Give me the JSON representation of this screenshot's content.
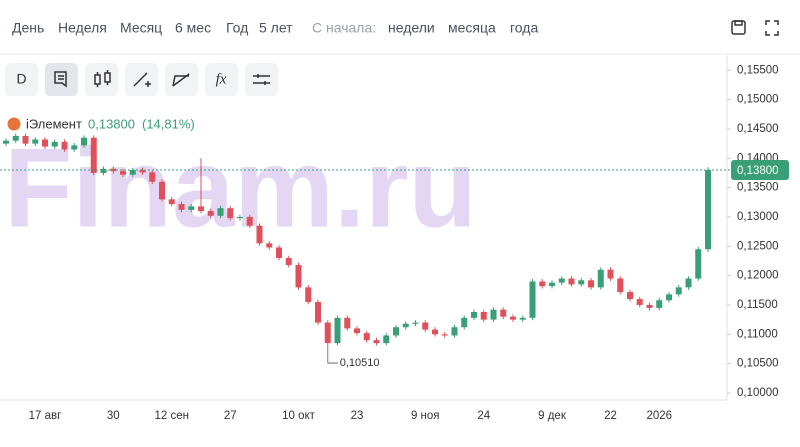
{
  "toolbar": {
    "periods": [
      "День",
      "Неделя",
      "Месяц",
      "6 мес",
      "Год",
      "5 лет"
    ],
    "since_label": "С начала:",
    "since": [
      "недели",
      "месяца",
      "года"
    ],
    "mode": "D"
  },
  "chart_data": {
    "type": "candlestick",
    "watermark": "Finam.ru",
    "legend": {
      "name": "iЭлемент",
      "price": "0,13800",
      "change": "(14,81%)"
    },
    "up_color": "#3a9f77",
    "down_color": "#e0505a",
    "grid": false,
    "categories": [
      null,
      null,
      null,
      null,
      "17 авг",
      null,
      null,
      null,
      null,
      null,
      null,
      "30",
      null,
      null,
      null,
      null,
      null,
      "12 сен",
      null,
      null,
      null,
      null,
      null,
      "27",
      null,
      null,
      null,
      null,
      null,
      null,
      "10 окт",
      null,
      null,
      null,
      null,
      null,
      "23",
      null,
      null,
      null,
      null,
      null,
      null,
      "9 ноя",
      null,
      null,
      null,
      null,
      null,
      "24",
      null,
      null,
      null,
      null,
      null,
      null,
      "9 дек",
      null,
      null,
      null,
      null,
      null,
      "22",
      null,
      null,
      null,
      null,
      "2026",
      null,
      null,
      null,
      null,
      null
    ],
    "opens": [
      0.1425,
      0.143,
      0.1438,
      0.1425,
      0.1432,
      0.142,
      0.1428,
      0.1415,
      0.1422,
      0.1435,
      0.1375,
      0.1382,
      0.1378,
      0.1372,
      0.138,
      0.1376,
      0.136,
      0.133,
      0.1322,
      0.1312,
      0.1318,
      0.131,
      0.1302,
      0.1315,
      0.1298,
      0.13,
      0.1285,
      0.1255,
      0.1248,
      0.123,
      0.1218,
      0.118,
      0.1155,
      0.112,
      0.1085,
      0.1128,
      0.111,
      0.1102,
      0.109,
      0.1085,
      0.1098,
      0.1112,
      0.1118,
      0.112,
      0.1108,
      0.11,
      0.1098,
      0.1112,
      0.1128,
      0.1138,
      0.1125,
      0.1142,
      0.113,
      0.1125,
      0.1128,
      0.119,
      0.1182,
      0.1188,
      0.1195,
      0.1185,
      0.1192,
      0.118,
      0.121,
      0.1195,
      0.1172,
      0.116,
      0.115,
      0.1145,
      0.1158,
      0.1168,
      0.118,
      0.1195,
      0.1245
    ],
    "highs": [
      0.1434,
      0.1442,
      0.1442,
      0.1436,
      0.1436,
      0.1432,
      0.1432,
      0.1426,
      0.1439,
      0.1439,
      0.1386,
      0.1386,
      0.1382,
      0.1384,
      0.1384,
      0.138,
      0.1364,
      0.1334,
      0.1326,
      0.1322,
      0.14,
      0.1314,
      0.1319,
      0.1319,
      0.1304,
      0.1304,
      0.1289,
      0.1259,
      0.1252,
      0.1234,
      0.1222,
      0.1184,
      0.1159,
      0.1124,
      0.1132,
      0.1132,
      0.1114,
      0.1106,
      0.1094,
      0.1102,
      0.1116,
      0.1122,
      0.1124,
      0.1124,
      0.1112,
      0.1104,
      0.1116,
      0.1132,
      0.1142,
      0.1142,
      0.1146,
      0.1146,
      0.1134,
      0.1132,
      0.1194,
      0.1194,
      0.1192,
      0.1199,
      0.1199,
      0.1196,
      0.1196,
      0.1214,
      0.1214,
      0.1199,
      0.1176,
      0.1164,
      0.1154,
      0.1162,
      0.1172,
      0.1184,
      0.1199,
      0.1249,
      0.1385
    ],
    "lows": [
      0.1421,
      0.1426,
      0.1421,
      0.1421,
      0.1416,
      0.1416,
      0.1411,
      0.1411,
      0.1418,
      0.1371,
      0.1371,
      0.1374,
      0.1368,
      0.1368,
      0.1372,
      0.1356,
      0.1326,
      0.1318,
      0.1308,
      0.1308,
      0.1306,
      0.1298,
      0.1298,
      0.1294,
      0.1294,
      0.1281,
      0.1251,
      0.1244,
      0.1226,
      0.1214,
      0.1176,
      0.1151,
      0.1116,
      0.1051,
      0.1081,
      0.1106,
      0.1098,
      0.1086,
      0.1081,
      0.1081,
      0.1094,
      0.1108,
      0.1114,
      0.1104,
      0.1096,
      0.1094,
      0.1094,
      0.1108,
      0.1124,
      0.1121,
      0.1121,
      0.1126,
      0.1121,
      0.1121,
      0.1124,
      0.1178,
      0.1178,
      0.1184,
      0.1181,
      0.1181,
      0.1176,
      0.1176,
      0.1191,
      0.1168,
      0.1156,
      0.1146,
      0.1141,
      0.1141,
      0.1154,
      0.1164,
      0.1176,
      0.1191,
      0.124
    ],
    "closes": [
      0.143,
      0.1438,
      0.1425,
      0.1432,
      0.142,
      0.1428,
      0.1415,
      0.1422,
      0.1435,
      0.1375,
      0.1382,
      0.1378,
      0.1372,
      0.138,
      0.1376,
      0.136,
      0.133,
      0.1322,
      0.1312,
      0.1318,
      0.131,
      0.1302,
      0.1315,
      0.1298,
      0.13,
      0.1285,
      0.1255,
      0.1248,
      0.123,
      0.1218,
      0.118,
      0.1155,
      0.112,
      0.1085,
      0.1128,
      0.111,
      0.1102,
      0.109,
      0.1085,
      0.1098,
      0.1112,
      0.1118,
      0.112,
      0.1108,
      0.11,
      0.1098,
      0.1112,
      0.1128,
      0.1138,
      0.1125,
      0.1142,
      0.113,
      0.1125,
      0.1128,
      0.119,
      0.1182,
      0.1188,
      0.1195,
      0.1185,
      0.1192,
      0.118,
      0.121,
      0.1195,
      0.1172,
      0.116,
      0.115,
      0.1145,
      0.1158,
      0.1168,
      0.118,
      0.1195,
      0.1245,
      0.138
    ],
    "ylim": [
      0.0988,
      0.1576
    ],
    "yticks": [
      {
        "value": 0.1,
        "label": "0,10000"
      },
      {
        "value": 0.105,
        "label": "0,10500"
      },
      {
        "value": 0.11,
        "label": "0,11000"
      },
      {
        "value": 0.115,
        "label": "0,11500"
      },
      {
        "value": 0.12,
        "label": "0,12000"
      },
      {
        "value": 0.125,
        "label": "0,12500"
      },
      {
        "value": 0.13,
        "label": "0,13000"
      },
      {
        "value": 0.135,
        "label": "0,13500"
      },
      {
        "value": 0.14,
        "label": "0,14000"
      },
      {
        "value": 0.145,
        "label": "0,14500"
      },
      {
        "value": 0.15,
        "label": "0,15000"
      },
      {
        "value": 0.155,
        "label": "0,15500"
      }
    ],
    "last_price": {
      "value": 0.138,
      "label": "0,13800"
    },
    "min_annotation": {
      "value": 0.1051,
      "label": "0,10510"
    }
  }
}
